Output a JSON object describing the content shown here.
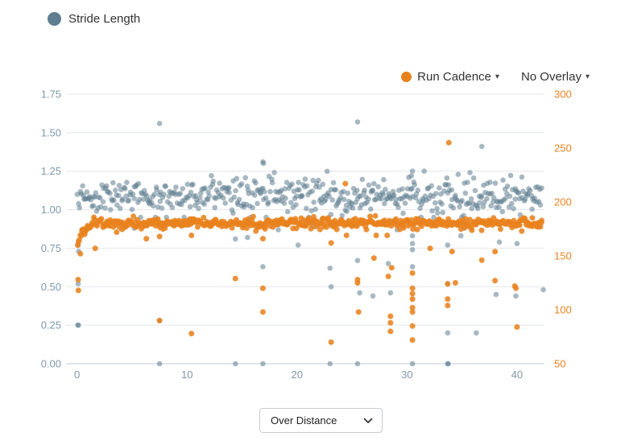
{
  "legend": {
    "label": "Stride Length",
    "dot_color": "#5E7D90"
  },
  "header": {
    "run_cadence": {
      "label": "Run Cadence",
      "dot_color": "#E8821E",
      "caret": "▾"
    },
    "no_overlay": {
      "label": "No Overlay",
      "caret": "▾"
    }
  },
  "footer_select": {
    "value": "Over Distance"
  },
  "chart_data": {
    "type": "scatter",
    "title": "",
    "x_axis": {
      "label": "Distance",
      "range": [
        -1,
        42.5
      ],
      "data_range": [
        0,
        42.3
      ],
      "ticks": [
        0,
        10,
        20,
        30,
        40
      ],
      "tick_labels": [
        "0",
        "10",
        "20",
        "30",
        "40"
      ],
      "color": "#8096A8"
    },
    "left_axis": {
      "title": "Stride Length",
      "range": [
        0,
        1.75
      ],
      "ticks": [
        1.75,
        1.5,
        1.25,
        1.0,
        0.75,
        0.5,
        0.25,
        0
      ],
      "tick_labels": [
        "1.75",
        "1.50",
        "1.25",
        "1.00",
        "0.75",
        "0.50",
        "0.25",
        "0.00"
      ],
      "color": "#7E99AC"
    },
    "right_axis": {
      "title": "Run Cadence",
      "range": [
        50,
        300
      ],
      "ticks": [
        300,
        250,
        200,
        150,
        100,
        50
      ],
      "tick_labels": [
        "300",
        "250",
        "200",
        "150",
        "100",
        "50"
      ],
      "color": "#E8821E"
    },
    "grid": {
      "color": "#E2E6EA",
      "baseline_color": "#C3CDD5",
      "legend_position": "top",
      "vertical_grid": false
    },
    "series": [
      {
        "name": "Stride Length",
        "axis": "left",
        "color": "#5E7D90",
        "opacity": 0.55,
        "radius": 3.3,
        "seed": 1337,
        "band": {
          "x_start": 0,
          "x_end": 42.3,
          "count": 480,
          "mean": 1.085,
          "sd": 0.06,
          "min": 0.95,
          "max": 1.26
        },
        "points": [
          [
            0.1,
            0.77
          ],
          [
            0.15,
            0.73
          ],
          [
            0.1,
            0.52
          ],
          [
            0.08,
            0.25
          ],
          [
            0.12,
            0.25
          ],
          [
            5.2,
            0.88
          ],
          [
            7.5,
            1.56
          ],
          [
            7.5,
            0.28
          ],
          [
            7.5,
            0
          ],
          [
            9.8,
            0.9
          ],
          [
            14.4,
            0.81
          ],
          [
            14.4,
            0
          ],
          [
            15.5,
            0.82
          ],
          [
            16.9,
            1.31
          ],
          [
            16.95,
            1.3
          ],
          [
            16.9,
            0.63
          ],
          [
            16.9,
            0
          ],
          [
            18.3,
            0.87
          ],
          [
            20.1,
            0.77
          ],
          [
            21.5,
            0.89
          ],
          [
            23,
            0.62
          ],
          [
            23.1,
            0.5
          ],
          [
            23,
            0
          ],
          [
            25.5,
            1.57
          ],
          [
            25.5,
            0.67
          ],
          [
            25.7,
            0.46
          ],
          [
            25.5,
            0
          ],
          [
            26.9,
            0.44
          ],
          [
            28.3,
            0.65
          ],
          [
            28.5,
            0.46
          ],
          [
            29.1,
            0.87
          ],
          [
            30.5,
            1.25
          ],
          [
            30.4,
            1.22
          ],
          [
            30.5,
            0.83
          ],
          [
            30.5,
            0.78
          ],
          [
            30.5,
            0.74
          ],
          [
            30.5,
            0.63
          ],
          [
            30.5,
            0
          ],
          [
            33.7,
            0.77
          ],
          [
            33.7,
            0.52
          ],
          [
            33.7,
            0.2
          ],
          [
            33.7,
            0
          ],
          [
            33.75,
            0
          ],
          [
            34.9,
            0.83
          ],
          [
            35.2,
            0.88
          ],
          [
            36.3,
            0.2
          ],
          [
            36.8,
            1.41
          ],
          [
            38.1,
            0.45
          ],
          [
            38.4,
            0.79
          ],
          [
            39.9,
            0.44
          ],
          [
            40,
            0.78
          ],
          [
            41,
            0.9
          ],
          [
            42.4,
            0.48
          ]
        ]
      },
      {
        "name": "Run Cadence",
        "axis": "right",
        "color": "#E8821E",
        "opacity": 0.88,
        "radius": 3.5,
        "seed": 2024,
        "band": {
          "x_start": 0,
          "x_end": 42.3,
          "count": 520,
          "mean": 180.5,
          "sd": 2.4,
          "min": 173,
          "max": 188
        },
        "ramp": {
          "x_end": 1.4,
          "from": 156,
          "to": 180.5
        },
        "points": [
          [
            0.1,
            128
          ],
          [
            0.12,
            118
          ],
          [
            0.3,
            152
          ],
          [
            0.7,
            170
          ],
          [
            1.65,
            157
          ],
          [
            3.6,
            172
          ],
          [
            6.3,
            166
          ],
          [
            7.5,
            168
          ],
          [
            7.5,
            90
          ],
          [
            10.4,
            169
          ],
          [
            10.4,
            78
          ],
          [
            14.4,
            129
          ],
          [
            16.9,
            166
          ],
          [
            16.9,
            120
          ],
          [
            16.9,
            98
          ],
          [
            23.1,
            162
          ],
          [
            23.1,
            70
          ],
          [
            24.4,
            217
          ],
          [
            24.5,
            169
          ],
          [
            25.5,
            128
          ],
          [
            25.5,
            125
          ],
          [
            25.6,
            98
          ],
          [
            27,
            148
          ],
          [
            27.2,
            169
          ],
          [
            28.2,
            169
          ],
          [
            28.3,
            131
          ],
          [
            28.6,
            139
          ],
          [
            28.5,
            94
          ],
          [
            28.5,
            88
          ],
          [
            28.5,
            80
          ],
          [
            30.5,
            134
          ],
          [
            30.5,
            120
          ],
          [
            30.5,
            115
          ],
          [
            30.5,
            110
          ],
          [
            30.5,
            102
          ],
          [
            30.5,
            98
          ],
          [
            30.5,
            85
          ],
          [
            30.5,
            72
          ],
          [
            32.1,
            157
          ],
          [
            33.7,
            124
          ],
          [
            33.7,
            110
          ],
          [
            33.7,
            104
          ],
          [
            33.8,
            255
          ],
          [
            34.1,
            154
          ],
          [
            34.4,
            125
          ],
          [
            36.8,
            146
          ],
          [
            38,
            154
          ],
          [
            38,
            127
          ],
          [
            39.8,
            122
          ],
          [
            39.9,
            120
          ],
          [
            40,
            84
          ]
        ]
      }
    ]
  }
}
